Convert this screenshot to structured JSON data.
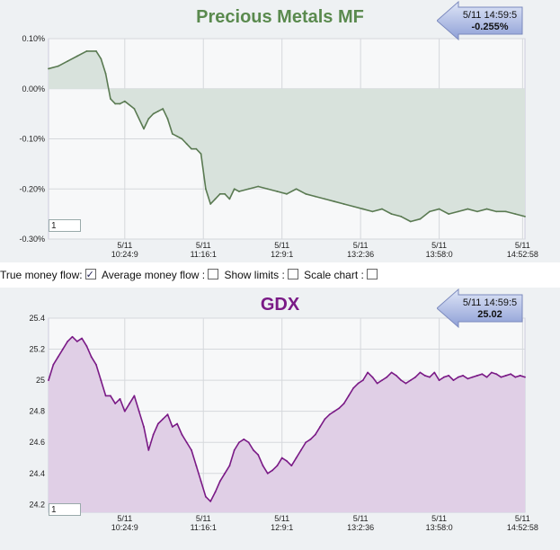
{
  "controls": {
    "true_money_flow": {
      "label": "True money flow:",
      "checked": true
    },
    "average_money_flow": {
      "label": "Average money flow :",
      "checked": false
    },
    "show_limits": {
      "label": "Show limits :",
      "checked": false
    },
    "scale_chart": {
      "label": "Scale chart :",
      "checked": false
    }
  },
  "chart_data": [
    {
      "type": "area",
      "title": "Precious Metals MF",
      "line_color": "#5a7a52",
      "fill_color": "#d8e2dc",
      "ylim": [
        -0.3,
        0.1
      ],
      "yticks": [
        0.1,
        0.0,
        -0.1,
        -0.2,
        -0.3
      ],
      "ytick_labels": [
        "0.10%",
        "0.00%",
        "-0.10%",
        "-0.20%",
        "-0.30%"
      ],
      "baseline": 0.0,
      "xlim": [
        0,
        100
      ],
      "xticks": [
        {
          "x": 16,
          "date": "5/11",
          "time": "10:24:9"
        },
        {
          "x": 32.5,
          "date": "5/11",
          "time": "11:16:1"
        },
        {
          "x": 49,
          "date": "5/11",
          "time": "12:9:1"
        },
        {
          "x": 65.5,
          "date": "5/11",
          "time": "13:2:36"
        },
        {
          "x": 82,
          "date": "5/11",
          "time": "13:58:0"
        },
        {
          "x": 99.5,
          "date": "5/11",
          "time": "14:52:58"
        }
      ],
      "callout": {
        "time": "5/11 14:59:5",
        "value": "-0.255%"
      },
      "level_box": "1",
      "x": [
        0,
        2,
        4,
        6,
        8,
        10,
        11,
        12,
        13,
        14,
        15,
        16,
        18,
        20,
        21,
        22,
        23,
        24,
        25,
        26,
        27,
        28,
        29,
        30,
        31,
        32,
        33,
        34,
        35,
        36,
        37,
        38,
        39,
        40,
        42,
        44,
        46,
        48,
        50,
        52,
        54,
        56,
        58,
        60,
        62,
        64,
        66,
        68,
        70,
        72,
        74,
        76,
        78,
        80,
        82,
        84,
        86,
        88,
        90,
        92,
        94,
        96,
        98,
        100
      ],
      "y": [
        0.04,
        0.045,
        0.055,
        0.065,
        0.075,
        0.075,
        0.06,
        0.03,
        -0.02,
        -0.03,
        -0.03,
        -0.025,
        -0.04,
        -0.08,
        -0.06,
        -0.05,
        -0.045,
        -0.04,
        -0.06,
        -0.09,
        -0.095,
        -0.1,
        -0.11,
        -0.12,
        -0.12,
        -0.13,
        -0.2,
        -0.23,
        -0.22,
        -0.21,
        -0.21,
        -0.22,
        -0.2,
        -0.205,
        -0.2,
        -0.195,
        -0.2,
        -0.205,
        -0.21,
        -0.2,
        -0.21,
        -0.215,
        -0.22,
        -0.225,
        -0.23,
        -0.235,
        -0.24,
        -0.245,
        -0.24,
        -0.25,
        -0.255,
        -0.265,
        -0.26,
        -0.245,
        -0.24,
        -0.25,
        -0.245,
        -0.24,
        -0.245,
        -0.24,
        -0.245,
        -0.245,
        -0.25,
        -0.255
      ]
    },
    {
      "type": "area",
      "title": "GDX",
      "line_color": "#7a1a86",
      "fill_color": "#e0cfe6",
      "ylim": [
        24.15,
        25.4
      ],
      "yticks": [
        25.4,
        25.2,
        25.0,
        24.8,
        24.6,
        24.4,
        24.2
      ],
      "ytick_labels": [
        "25.4",
        "25.2",
        "25",
        "24.8",
        "24.6",
        "24.4",
        "24.2"
      ],
      "xlim": [
        0,
        100
      ],
      "xticks": [
        {
          "x": 16,
          "date": "5/11",
          "time": "10:24:9"
        },
        {
          "x": 32.5,
          "date": "5/11",
          "time": "11:16:1"
        },
        {
          "x": 49,
          "date": "5/11",
          "time": "12:9:1"
        },
        {
          "x": 65.5,
          "date": "5/11",
          "time": "13:2:36"
        },
        {
          "x": 82,
          "date": "5/11",
          "time": "13:58:0"
        },
        {
          "x": 99.5,
          "date": "5/11",
          "time": "14:52:58"
        }
      ],
      "callout": {
        "time": "5/11 14:59:5",
        "value": "25.02"
      },
      "level_box": "1",
      "x": [
        0,
        1,
        2,
        3,
        4,
        5,
        6,
        7,
        8,
        9,
        10,
        11,
        12,
        13,
        14,
        15,
        16,
        17,
        18,
        19,
        20,
        21,
        22,
        23,
        24,
        25,
        26,
        27,
        28,
        29,
        30,
        31,
        32,
        33,
        34,
        35,
        36,
        37,
        38,
        39,
        40,
        41,
        42,
        43,
        44,
        45,
        46,
        47,
        48,
        49,
        50,
        51,
        52,
        53,
        54,
        55,
        56,
        57,
        58,
        59,
        60,
        61,
        62,
        63,
        64,
        65,
        66,
        67,
        68,
        69,
        70,
        71,
        72,
        73,
        74,
        75,
        76,
        77,
        78,
        79,
        80,
        81,
        82,
        83,
        84,
        85,
        86,
        87,
        88,
        89,
        90,
        91,
        92,
        93,
        94,
        95,
        96,
        97,
        98,
        99,
        100
      ],
      "y": [
        25.0,
        25.1,
        25.15,
        25.2,
        25.25,
        25.28,
        25.25,
        25.27,
        25.22,
        25.15,
        25.1,
        25.0,
        24.9,
        24.9,
        24.85,
        24.88,
        24.8,
        24.85,
        24.9,
        24.8,
        24.7,
        24.55,
        24.65,
        24.72,
        24.75,
        24.78,
        24.7,
        24.72,
        24.65,
        24.6,
        24.55,
        24.45,
        24.35,
        24.25,
        24.22,
        24.28,
        24.35,
        24.4,
        24.45,
        24.55,
        24.6,
        24.62,
        24.6,
        24.55,
        24.52,
        24.45,
        24.4,
        24.42,
        24.45,
        24.5,
        24.48,
        24.45,
        24.5,
        24.55,
        24.6,
        24.62,
        24.65,
        24.7,
        24.75,
        24.78,
        24.8,
        24.82,
        24.85,
        24.9,
        24.95,
        24.98,
        25.0,
        25.05,
        25.02,
        24.98,
        25.0,
        25.02,
        25.05,
        25.03,
        25.0,
        24.98,
        25.0,
        25.02,
        25.05,
        25.03,
        25.02,
        25.05,
        25.0,
        25.02,
        25.03,
        25.0,
        25.02,
        25.03,
        25.01,
        25.02,
        25.03,
        25.04,
        25.02,
        25.05,
        25.04,
        25.02,
        25.03,
        25.04,
        25.02,
        25.03,
        25.02
      ]
    }
  ]
}
